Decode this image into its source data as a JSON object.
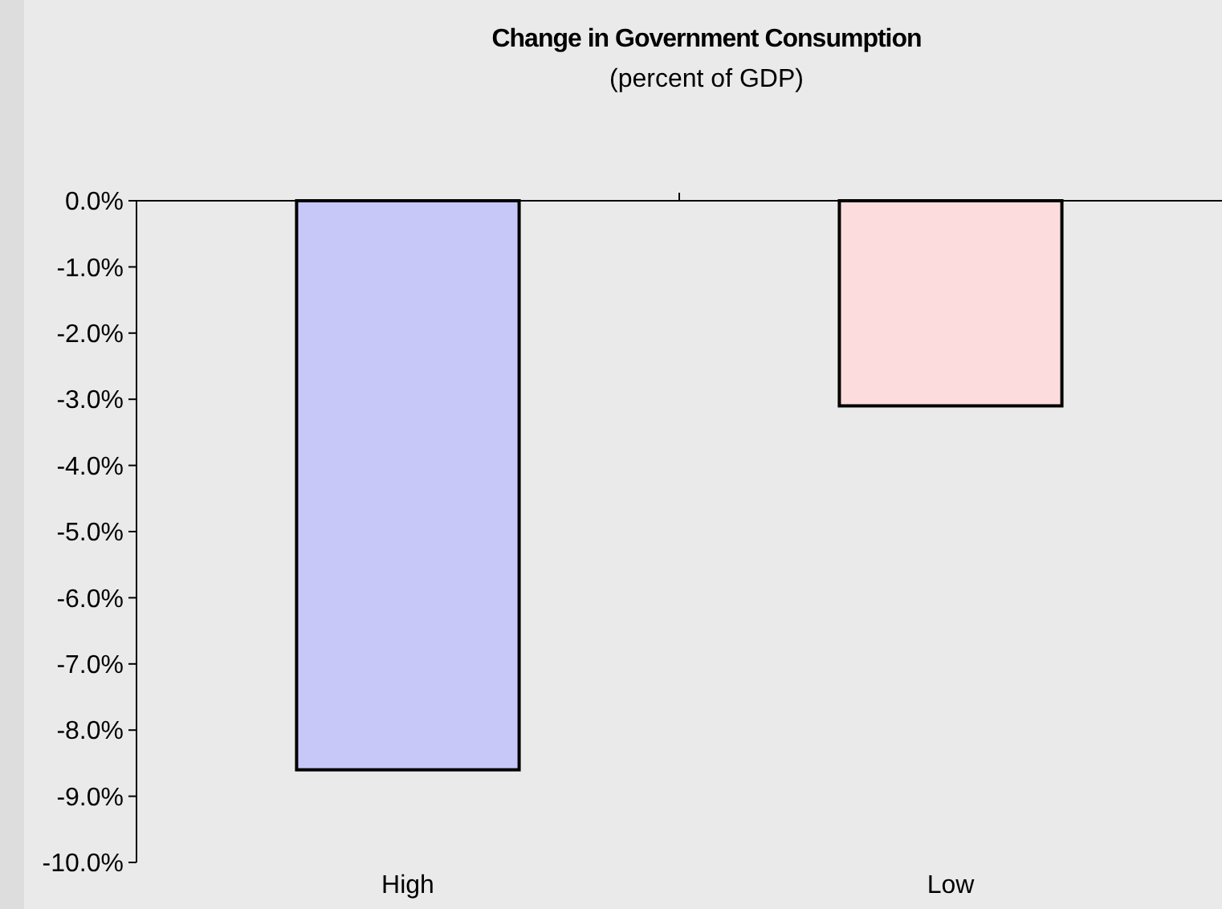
{
  "chart_data": {
    "type": "bar",
    "title": "Change in Government Consumption",
    "subtitle": "(percent of GDP)",
    "categories": [
      "High",
      "Low"
    ],
    "values": [
      -8.6,
      -3.1
    ],
    "colors": [
      "#c8c8f8",
      "#fcdcdc"
    ],
    "ylim": [
      -10,
      0
    ],
    "yticks": [
      {
        "value": 0,
        "label": "0.0%"
      },
      {
        "value": -1,
        "label": "-1.0%"
      },
      {
        "value": -2,
        "label": "-2.0%"
      },
      {
        "value": -3,
        "label": "-3.0%"
      },
      {
        "value": -4,
        "label": "-4.0%"
      },
      {
        "value": -5,
        "label": "-5.0%"
      },
      {
        "value": -6,
        "label": "-6.0%"
      },
      {
        "value": -7,
        "label": "-7.0%"
      },
      {
        "value": -8,
        "label": "-8.0%"
      },
      {
        "value": -9,
        "label": "-9.0%"
      },
      {
        "value": -10,
        "label": "-10.0%"
      }
    ],
    "grid": false
  }
}
